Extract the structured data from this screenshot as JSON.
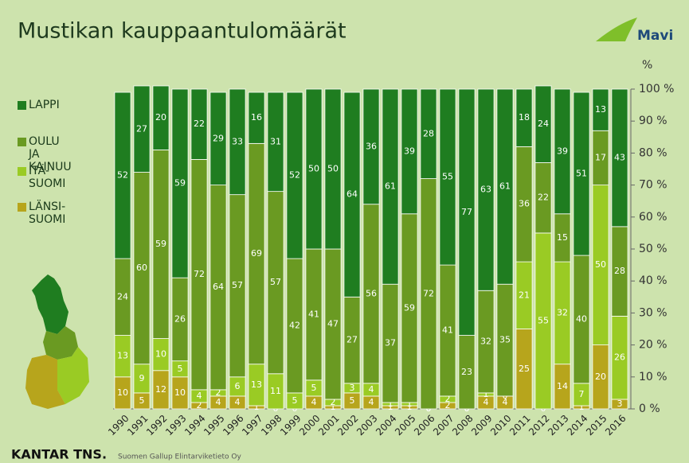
{
  "chart_data": {
    "type": "stacked_bar_100",
    "title": "Mustikan kauppaantulomäärät",
    "logo": "Mavi",
    "y_axis_label": "%",
    "footer_brand": "KANTAR TNS.",
    "footer_source": "Suomen Gallup Elintarviketieto Oy",
    "categories": [
      "1990",
      "1991",
      "1992",
      "1993",
      "1994",
      "1995",
      "1996",
      "1997",
      "1998",
      "1999",
      "2000",
      "2001",
      "2002",
      "2003",
      "2004",
      "2005",
      "2006",
      "2007",
      "2008",
      "2009",
      "2010",
      "2011",
      "2012",
      "2013",
      "2014",
      "2015",
      "2016"
    ],
    "series": [
      {
        "name": "LÄNSI-SUOMI",
        "color": "#b7a51c",
        "values": [
          10,
          5,
          12,
          10,
          2,
          4,
          4,
          1,
          0,
          0,
          4,
          1,
          5,
          4,
          1,
          1,
          0,
          2,
          0,
          4,
          4,
          25,
          0,
          14,
          1,
          20,
          3
        ]
      },
      {
        "name": "ITÄ-SUOMI",
        "color": "#9acb24",
        "values": [
          13,
          9,
          10,
          5,
          4,
          2,
          6,
          13,
          11,
          5,
          5,
          2,
          3,
          4,
          1,
          1,
          0,
          2,
          0,
          1,
          0,
          21,
          55,
          32,
          7,
          50,
          26
        ]
      },
      {
        "name": "OULU JA KAINUU",
        "color": "#6a9a22",
        "values": [
          24,
          60,
          59,
          26,
          72,
          64,
          57,
          69,
          57,
          42,
          41,
          47,
          27,
          56,
          37,
          59,
          72,
          41,
          23,
          32,
          35,
          36,
          22,
          15,
          40,
          17,
          28
        ]
      },
      {
        "name": "LAPPI",
        "color": "#1f7d20",
        "values": [
          52,
          27,
          20,
          59,
          22,
          29,
          33,
          16,
          31,
          52,
          50,
          50,
          64,
          36,
          61,
          39,
          28,
          55,
          77,
          63,
          61,
          18,
          24,
          39,
          51,
          13,
          43
        ]
      }
    ],
    "ylim": [
      0,
      100
    ],
    "yticks": [
      {
        "value": 0,
        "label": "0 %"
      },
      {
        "value": 10,
        "label": "10 %"
      },
      {
        "value": 20,
        "label": "20 %"
      },
      {
        "value": 30,
        "label": "30 %"
      },
      {
        "value": 40,
        "label": "40 %"
      },
      {
        "value": 50,
        "label": "50 %"
      },
      {
        "value": 60,
        "label": "60 %"
      },
      {
        "value": 70,
        "label": "70 %"
      },
      {
        "value": 80,
        "label": "80 %"
      },
      {
        "value": 90,
        "label": "90 %"
      },
      {
        "value": 100,
        "label": "100 %"
      }
    ],
    "grid": false
  }
}
